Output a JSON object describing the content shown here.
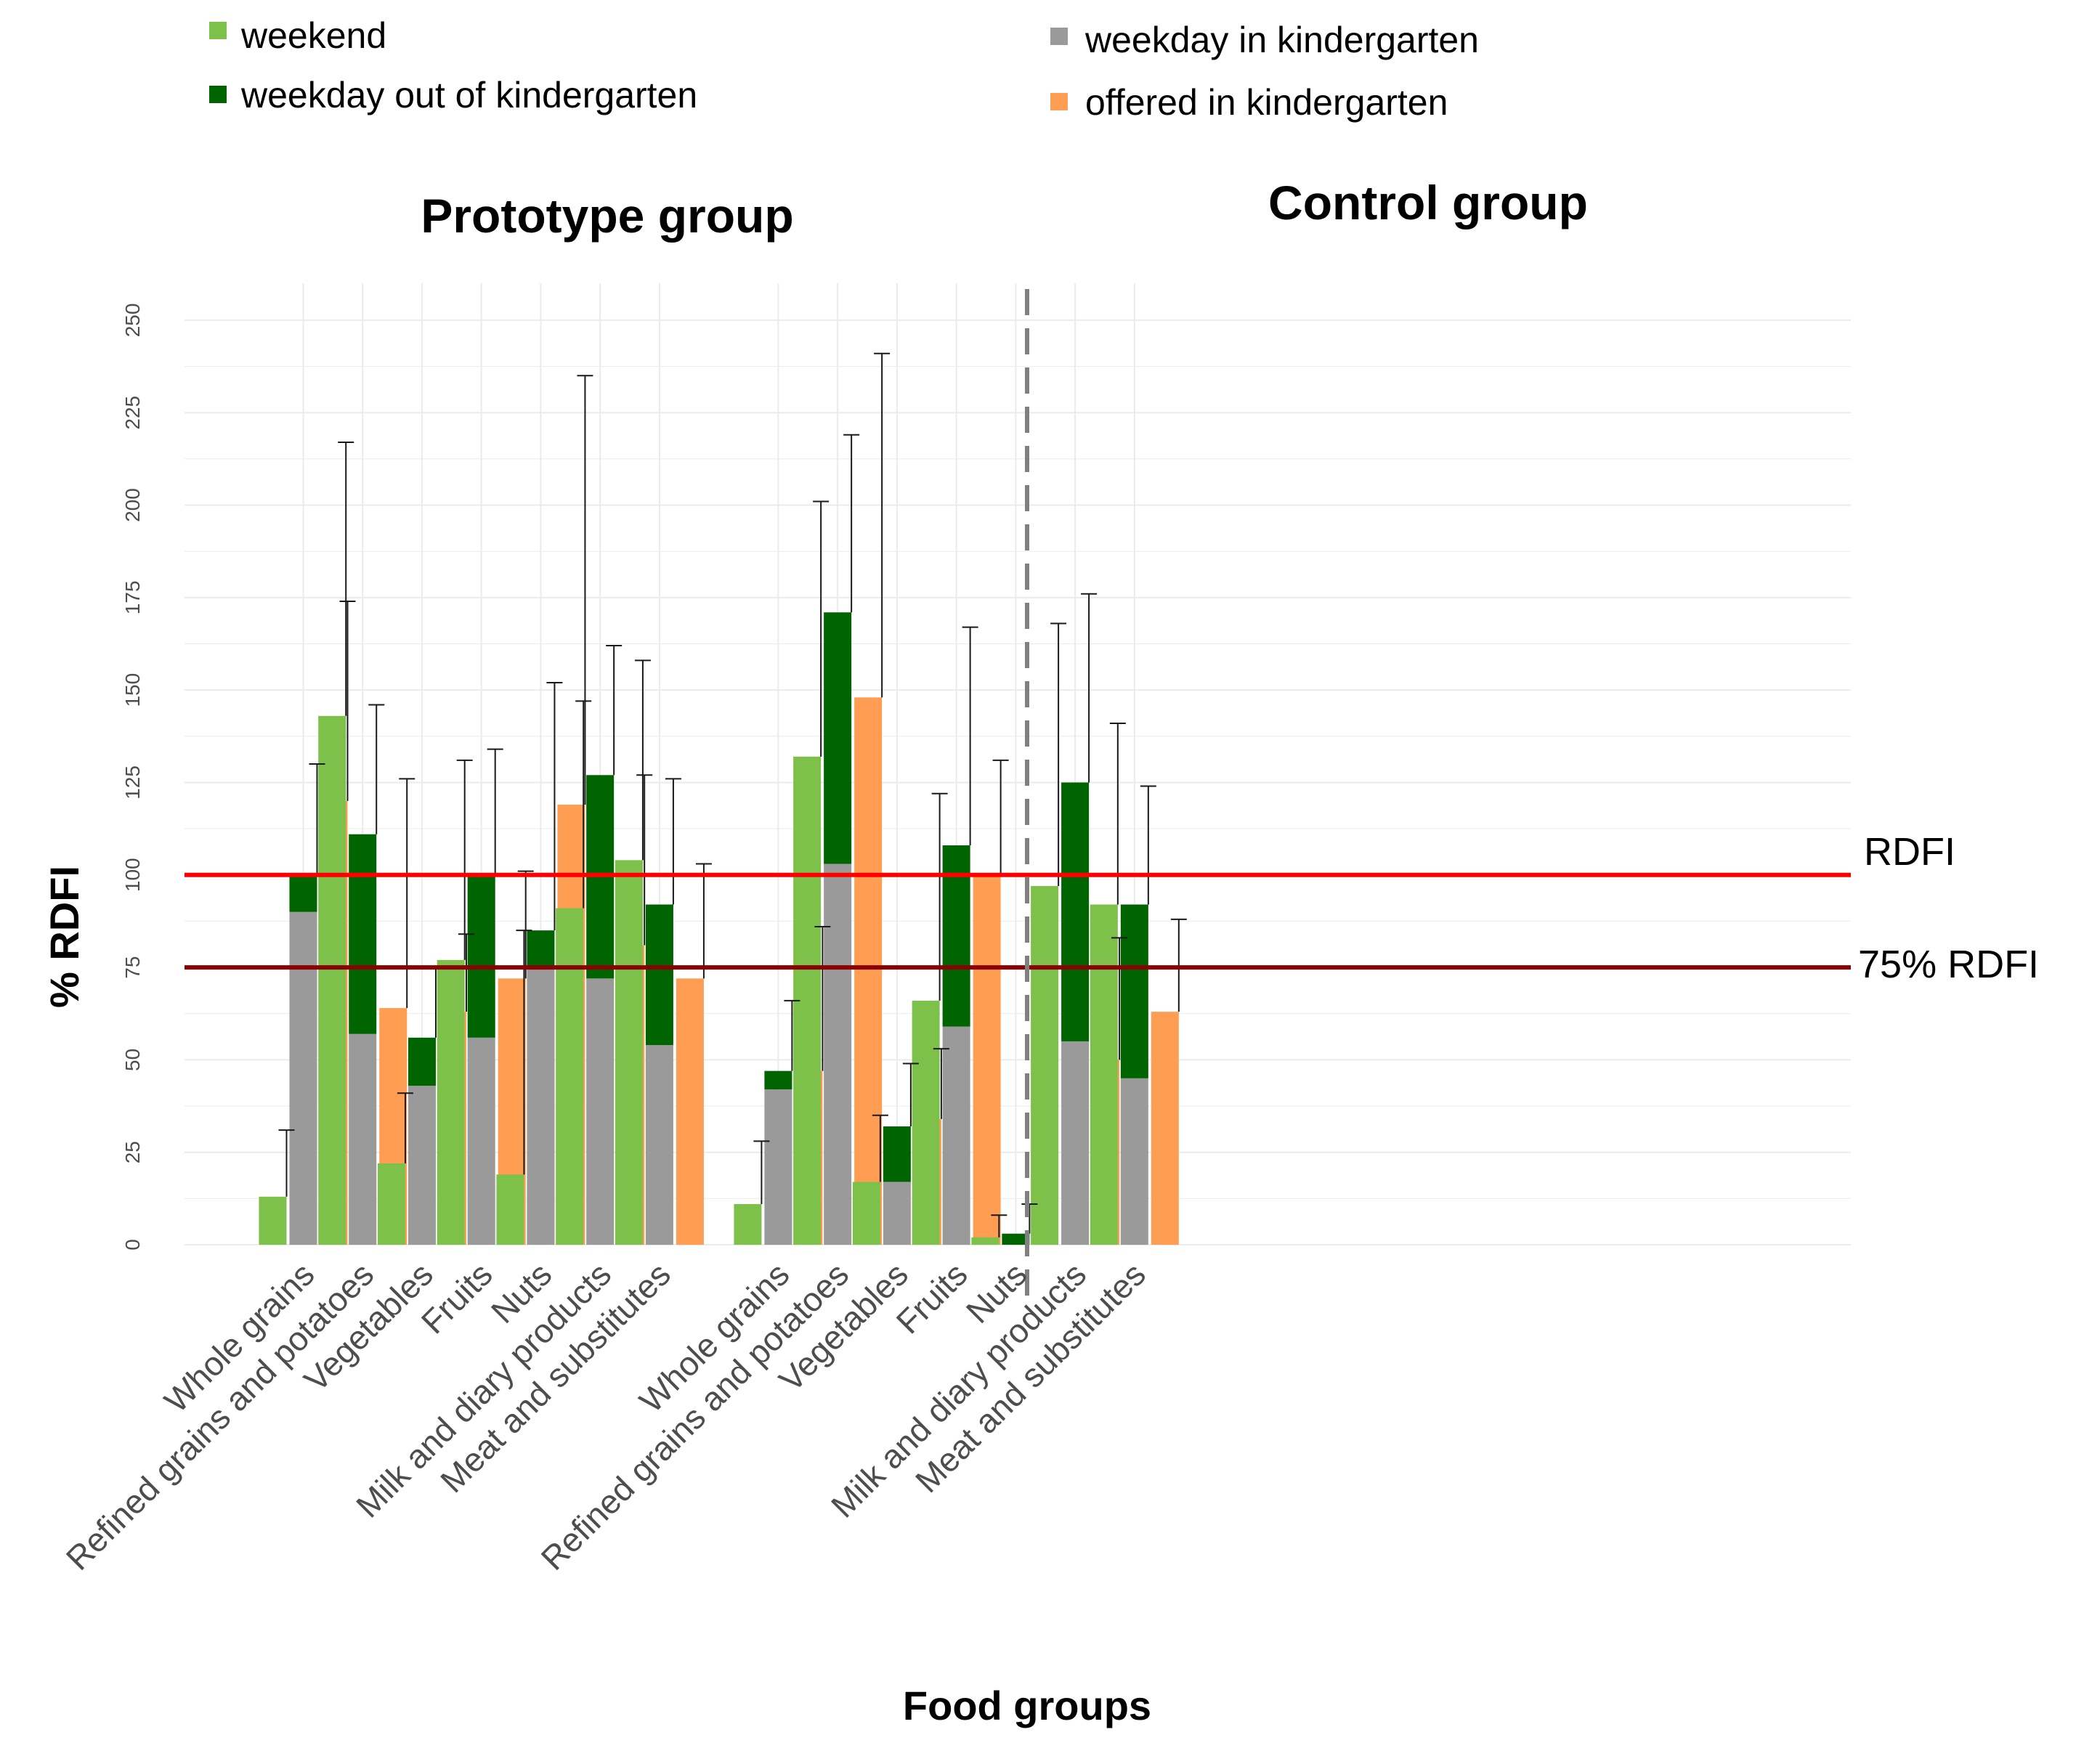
{
  "chart_data": {
    "type": "bar",
    "ylabel": "% RDFI",
    "xlabel": "Food groups",
    "ylim": [
      0,
      260
    ],
    "yticks": [
      0,
      25,
      50,
      75,
      100,
      125,
      150,
      175,
      200,
      225,
      250
    ],
    "legend": {
      "placement": "top",
      "items": [
        {
          "key": "weekend",
          "label": "weekend",
          "color": "#7dc14b"
        },
        {
          "key": "weekday_out",
          "label": "weekday out of kindergarten",
          "color": "#006400"
        },
        {
          "key": "weekday_in",
          "label": "weekday in kindergarten",
          "color": "#9a9a9a"
        },
        {
          "key": "offered",
          "label": "offered in kindergarten",
          "color": "#ff9d52"
        }
      ]
    },
    "reference_lines": [
      {
        "value": 100,
        "label": "RDFI",
        "color": "#ff0000"
      },
      {
        "value": 75,
        "label": "75% RDFI",
        "color": "#8b0000"
      }
    ],
    "panels": [
      {
        "title": "Prototype group",
        "categories": [
          "Whole grains",
          "Refined grains and potatoes",
          "Vegetables",
          "Fruits",
          "Nuts",
          "Milk and diary products",
          "Meat and substitutes"
        ],
        "weekend": [
          13,
          143,
          22,
          77,
          19,
          91,
          104
        ],
        "weekend_err": [
          31,
          217,
          41,
          131,
          85,
          147,
          158
        ],
        "weekday_in": [
          90,
          57,
          43,
          56,
          75,
          72,
          54
        ],
        "weekday_total": [
          100,
          111,
          56,
          100,
          85,
          127,
          92
        ],
        "weekday_err": [
          130,
          146,
          75,
          134,
          152,
          162,
          126
        ],
        "offered": [
          120,
          64,
          63,
          72,
          119,
          81,
          72
        ],
        "offered_err": [
          174,
          126,
          84,
          101,
          235,
          127,
          103
        ]
      },
      {
        "title": "Control group",
        "categories": [
          "Whole grains",
          "Refined grains and potatoes",
          "Vegetables",
          "Fruits",
          "Nuts",
          "Milk and diary products",
          "Meat and substitutes"
        ],
        "weekend": [
          11,
          132,
          17,
          66,
          2,
          97,
          92
        ],
        "weekend_err": [
          28,
          201,
          35,
          122,
          8,
          168,
          141
        ],
        "weekday_in": [
          42,
          103,
          17,
          59,
          0,
          55,
          45
        ],
        "weekday_total": [
          47,
          171,
          32,
          108,
          3,
          125,
          92
        ],
        "weekday_err": [
          66,
          219,
          49,
          167,
          11,
          176,
          124
        ],
        "offered": [
          47,
          148,
          34,
          100,
          0,
          50,
          63
        ],
        "offered_err": [
          86,
          241,
          53,
          131,
          0,
          83,
          88
        ]
      }
    ]
  },
  "colors": {
    "grid": "#ebebeb",
    "divider": "#808080",
    "errorbar": "#1a1a1a"
  }
}
